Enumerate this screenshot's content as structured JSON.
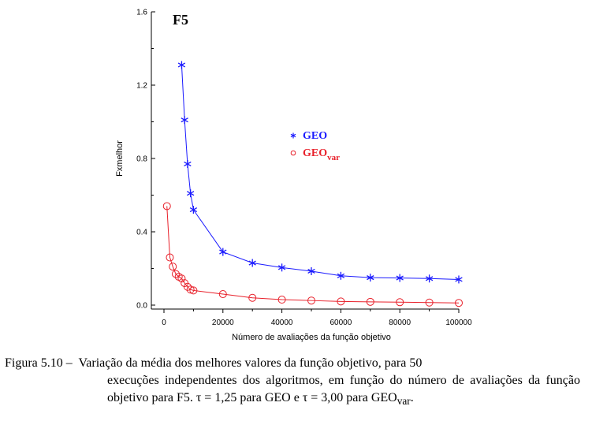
{
  "chart_data": {
    "type": "line",
    "title": "F5",
    "xlabel": "Número de avaliações da função objetivo",
    "ylabel": "Fxmelhor",
    "xlim": [
      0,
      100000
    ],
    "ylim": [
      0,
      1.6
    ],
    "x_ticks": [
      "0",
      "20000",
      "40000",
      "60000",
      "80000",
      "100000"
    ],
    "y_ticks": [
      "0.0",
      "0.4",
      "0.8",
      "1.2",
      "1.6"
    ],
    "legend_position": "center-right",
    "grid": false,
    "series": [
      {
        "name": "GEO",
        "name_sub": "",
        "color": "#1a1aff",
        "marker": "asterisk",
        "x": [
          6000,
          7000,
          8000,
          9000,
          10000,
          20000,
          30000,
          40000,
          50000,
          60000,
          70000,
          80000,
          90000,
          100000
        ],
        "y": [
          1.31,
          1.01,
          0.77,
          0.61,
          0.52,
          0.29,
          0.23,
          0.205,
          0.185,
          0.16,
          0.15,
          0.148,
          0.145,
          0.14
        ]
      },
      {
        "name": "GEO",
        "name_sub": "var",
        "color": "#e8202a",
        "marker": "circle",
        "x": [
          1000,
          2000,
          3000,
          4000,
          5000,
          6000,
          7000,
          8000,
          9000,
          10000,
          20000,
          30000,
          40000,
          50000,
          60000,
          70000,
          80000,
          90000,
          100000
        ],
        "y": [
          0.54,
          0.26,
          0.21,
          0.17,
          0.155,
          0.145,
          0.12,
          0.1,
          0.085,
          0.08,
          0.06,
          0.04,
          0.03,
          0.025,
          0.02,
          0.018,
          0.016,
          0.014,
          0.012
        ]
      }
    ]
  },
  "caption": {
    "prefix": "Figura 5.10 –",
    "line1": "Variação da média dos melhores valores da função objetivo, para 50",
    "rest": "execuções independentes dos algoritmos, em função do número de avaliações da função objetivo para F5. τ = 1,25 para GEO e τ = 3,00 para GEO",
    "rest_sub": "var",
    "rest_end": "."
  }
}
